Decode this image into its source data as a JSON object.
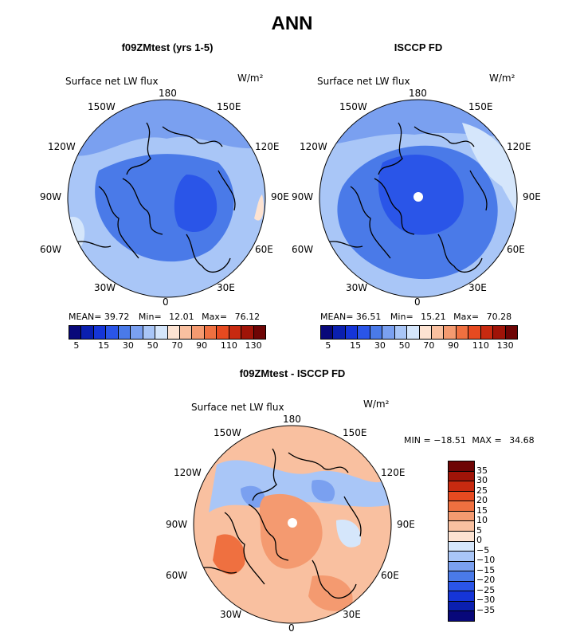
{
  "title": "ANN",
  "panels": [
    {
      "heading": "f09ZMtest (yrs 1-5)",
      "subtitle": "Surface net LW flux",
      "units": "W/m²",
      "lon_labels": {
        "n180": "180",
        "e150": "150E",
        "e120": "120E",
        "e90": "90E",
        "e60": "60E",
        "e30": "30E",
        "s0": "0",
        "w30": "30W",
        "w60": "60W",
        "w90": "90W",
        "w120": "120W",
        "w150": "150W"
      },
      "stats": {
        "mean_label": "MEAN=",
        "mean": "39.72",
        "min_label": "Min=",
        "min": "12.01",
        "max_label": "Max=",
        "max": "76.12"
      },
      "colorbar_labels": [
        "5",
        "15",
        "30",
        "50",
        "70",
        "90",
        "110",
        "130"
      ]
    },
    {
      "heading": "ISCCP FD",
      "subtitle": "Surface net LW flux",
      "units": "W/m²",
      "lon_labels": {
        "n180": "180",
        "e150": "150E",
        "e120": "120E",
        "e90": "90E",
        "e60": "60E",
        "e30": "30E",
        "s0": "0",
        "w30": "30W",
        "w60": "60W",
        "w90": "90W",
        "w120": "120W",
        "w150": "150W"
      },
      "stats": {
        "mean_label": "MEAN=",
        "mean": "36.51",
        "min_label": "Min=",
        "min": "15.21",
        "max_label": "Max=",
        "max": "70.28"
      },
      "colorbar_labels": [
        "5",
        "15",
        "30",
        "50",
        "70",
        "90",
        "110",
        "130"
      ]
    },
    {
      "heading": "f09ZMtest - ISCCP FD",
      "subtitle": "Surface net LW flux",
      "units": "W/m²",
      "lon_labels": {
        "n180": "180",
        "e150": "150E",
        "e120": "120E",
        "e90": "90E",
        "e60": "60E",
        "e30": "30E",
        "s0": "0",
        "w30": "30W",
        "w60": "60W",
        "w90": "90W",
        "w120": "120W",
        "w150": "150W"
      },
      "stats": {
        "min_label": "MIN =",
        "min": "−18.51",
        "max_label": "MAX =",
        "max": "34.68"
      },
      "colorbar_labels": [
        "35",
        "30",
        "25",
        "20",
        "15",
        "10",
        "5",
        "0",
        "−5",
        "−10",
        "−15",
        "−20",
        "−25",
        "−30",
        "−35"
      ]
    }
  ],
  "colors": {
    "abs_scale": [
      "#08087a",
      "#0a1fb0",
      "#1535d8",
      "#2a55e8",
      "#4a7ae8",
      "#7aa0f0",
      "#a9c6f7",
      "#d5e6fb",
      "#fde3d2",
      "#f9c0a0",
      "#f49a70",
      "#ef7040",
      "#e64a20",
      "#c82a10",
      "#a01408",
      "#6e0505"
    ],
    "diff_scale": [
      "#6e0505",
      "#a01408",
      "#c82a10",
      "#e64a20",
      "#ef7040",
      "#f49a70",
      "#f9c0a0",
      "#fde3d2",
      "#d5e6fb",
      "#a9c6f7",
      "#7aa0f0",
      "#4a7ae8",
      "#2a55e8",
      "#1535d8",
      "#0a1fb0",
      "#08087a"
    ]
  }
}
